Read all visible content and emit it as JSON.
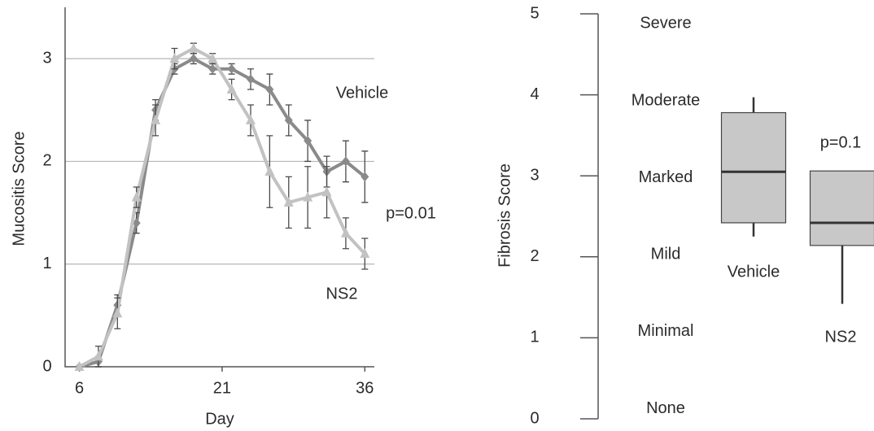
{
  "chart_data": [
    {
      "type": "line",
      "x_label": "Day",
      "y_label": "Mucositis Score",
      "x": [
        6,
        8,
        10,
        12,
        14,
        16,
        18,
        20,
        22,
        24,
        26,
        28,
        30,
        32,
        34,
        36
      ],
      "series": [
        {
          "name": "Vehicle",
          "color": "#8a8a8a",
          "marker": "diamond",
          "values": [
            0,
            0.05,
            0.6,
            1.4,
            2.5,
            2.9,
            3.0,
            2.9,
            2.9,
            2.8,
            2.7,
            2.4,
            2.2,
            1.9,
            2.0,
            1.85
          ],
          "errors": [
            0,
            0.05,
            0.1,
            0.1,
            0.1,
            0.05,
            0.05,
            0.05,
            0.05,
            0.1,
            0.15,
            0.15,
            0.2,
            0.15,
            0.2,
            0.25
          ]
        },
        {
          "name": "NS2",
          "color": "#c2c2c2",
          "marker": "triangle",
          "values": [
            0,
            0.1,
            0.52,
            1.65,
            2.4,
            3.0,
            3.1,
            3.0,
            2.7,
            2.4,
            1.9,
            1.6,
            1.65,
            1.7,
            1.3,
            1.1
          ],
          "errors": [
            0,
            0.1,
            0.15,
            0.1,
            0.15,
            0.1,
            0.05,
            0.05,
            0.1,
            0.15,
            0.35,
            0.25,
            0.3,
            0.25,
            0.15,
            0.15
          ]
        }
      ],
      "annotation": "p=0.01",
      "xlim": [
        4.5,
        37
      ],
      "xticks": [
        6,
        21,
        36
      ],
      "ylim": [
        0,
        3.5
      ],
      "yticks": [
        0,
        1,
        2,
        3
      ],
      "grid": true
    },
    {
      "type": "box",
      "y_label": "Fibrosis Score",
      "categories": [
        "Vehicle",
        "NS2"
      ],
      "boxes": [
        {
          "min": 2.25,
          "q1": 2.42,
          "median": 3.05,
          "q3": 3.78,
          "max": 3.97
        },
        {
          "min": 1.42,
          "q1": 2.14,
          "median": 2.42,
          "q3": 3.06,
          "max": 3.06
        }
      ],
      "color": "#c8c8c8",
      "severity_labels": [
        "None",
        "Minimal",
        "Mild",
        "Marked",
        "Moderate",
        "Severe"
      ],
      "annotation": "p=0.1",
      "ylim": [
        0,
        5
      ],
      "yticks": [
        0,
        1,
        2,
        3,
        4,
        5
      ]
    }
  ]
}
